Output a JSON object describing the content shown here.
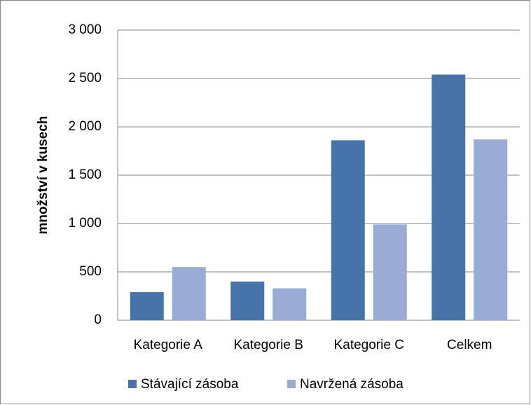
{
  "chart_data": {
    "type": "bar",
    "y_label": "množství v kusech",
    "categories": [
      "Kategorie A",
      "Kategorie B",
      "Kategorie C",
      "Celkem"
    ],
    "series": [
      {
        "name": "Stávající zásoba",
        "color": "#4673a9",
        "values": [
          290,
          400,
          1860,
          2540
        ]
      },
      {
        "name": "Navržená zásoba",
        "color": "#97abd4",
        "values": [
          550,
          330,
          990,
          1870
        ]
      }
    ],
    "ylim": [
      0,
      3000
    ],
    "yticks": [
      0,
      500,
      {
        "value": 1000,
        "label": "1 000"
      },
      {
        "value": 1500,
        "label": "1 500"
      },
      {
        "value": 2000,
        "label": "2 000"
      },
      {
        "value": 2500,
        "label": "2 500"
      },
      {
        "value": 3000,
        "label": "3 000"
      }
    ],
    "grid": true,
    "legend": "bottom"
  }
}
